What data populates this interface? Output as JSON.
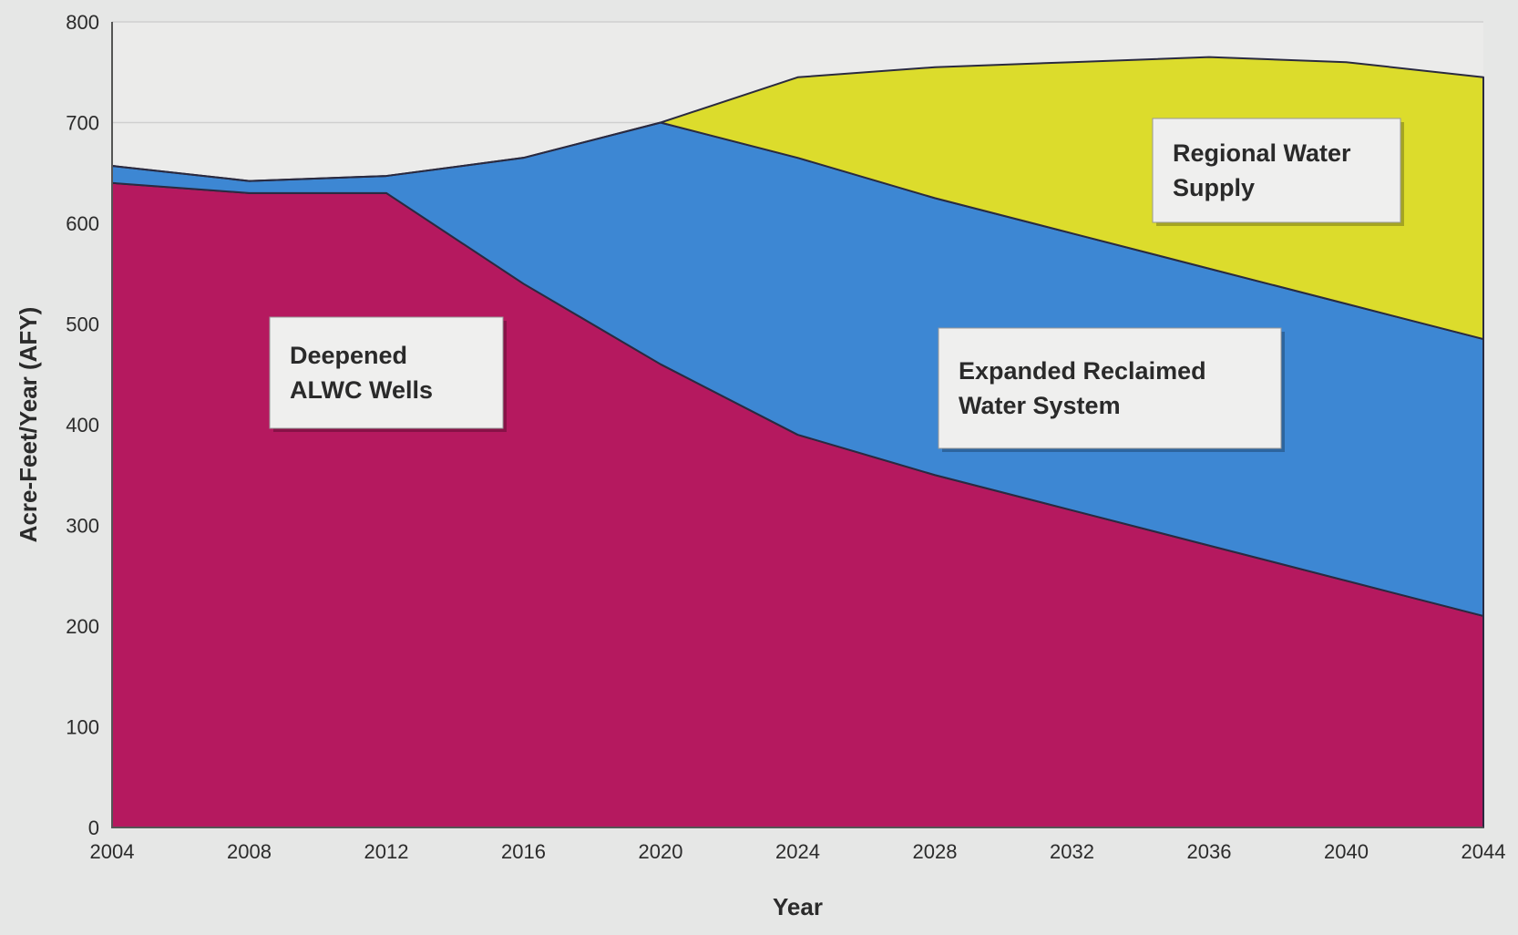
{
  "chart_data": {
    "type": "area",
    "stacked": true,
    "title": "",
    "xlabel": "Year",
    "ylabel": "Acre-Feet/Year (AFY)",
    "xlim": [
      2004,
      2044
    ],
    "ylim": [
      0,
      800
    ],
    "x_ticks": [
      2004,
      2008,
      2012,
      2016,
      2020,
      2024,
      2028,
      2032,
      2036,
      2040,
      2044
    ],
    "y_ticks": [
      0,
      100,
      200,
      300,
      400,
      500,
      600,
      700,
      800
    ],
    "grid": true,
    "legend": "none",
    "x": [
      2004,
      2008,
      2012,
      2016,
      2020,
      2024,
      2028,
      2032,
      2036,
      2040,
      2044
    ],
    "series": [
      {
        "name": "Deepened ALWC Wells",
        "color": "#b5195f",
        "values": [
          640,
          630,
          630,
          540,
          460,
          390,
          350,
          315,
          280,
          245,
          210
        ]
      },
      {
        "name": "Expanded Reclaimed Water System",
        "color": "#3d87d3",
        "values": [
          17,
          12,
          17,
          125,
          240,
          275,
          275,
          275,
          275,
          275,
          275
        ]
      },
      {
        "name": "Regional Water Supply",
        "color": "#dcdc2c",
        "values": [
          0,
          0,
          0,
          0,
          0,
          80,
          130,
          170,
          210,
          240,
          260
        ]
      }
    ],
    "annotations": [
      {
        "series": 0,
        "lines": [
          "Deepened",
          "ALWC Wells"
        ]
      },
      {
        "series": 1,
        "lines": [
          "Expanded Reclaimed",
          "Water System"
        ]
      },
      {
        "series": 2,
        "lines": [
          "Regional Water",
          "Supply"
        ]
      }
    ]
  }
}
